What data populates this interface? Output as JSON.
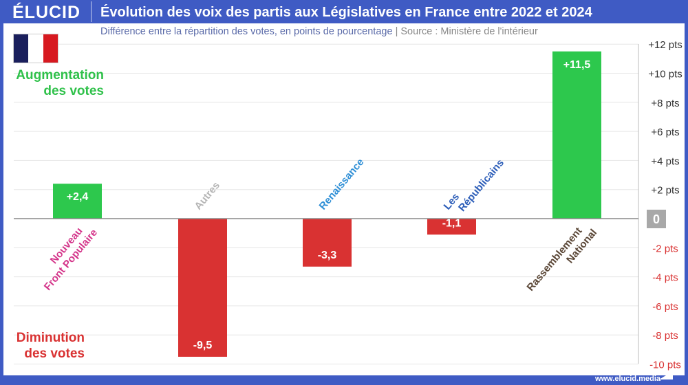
{
  "header": {
    "logo": "ÉLUCID",
    "title": "Évolution des voix des partis aux Législatives en France entre 2022 et 2024"
  },
  "subtitle": {
    "text": "Différence entre la répartition des votes, en points de pourcentage",
    "separator": "|",
    "source": "Source : Ministère de l'intérieur"
  },
  "legend": {
    "up": "Augmentation des votes",
    "down": "Diminution des votes"
  },
  "flag_colors": [
    "#1a1f5c",
    "#ffffff",
    "#d71920"
  ],
  "footer": {
    "url": "www.elucid.media"
  },
  "colors": {
    "positive": "#2dc84d",
    "negative": "#d93232",
    "zero_box": "#a8a8a8"
  },
  "chart_data": {
    "type": "bar",
    "categories": [
      "Nouveau Front Populaire",
      "Autres",
      "Renaissance",
      "Les Républicains",
      "Rassemblement National"
    ],
    "category_colors": [
      "#d4358a",
      "#b5b5b5",
      "#2f8fd6",
      "#2c5db8",
      "#5a4636"
    ],
    "values": [
      2.4,
      -9.5,
      -3.3,
      -1.1,
      11.5
    ],
    "data_labels": [
      "+2,4",
      "-9,5",
      "-3,3",
      "-1,1",
      "+11,5"
    ],
    "ylim": [
      -10,
      12
    ],
    "yticks": [
      12,
      10,
      8,
      6,
      4,
      2,
      0,
      -2,
      -4,
      -6,
      -8,
      -10
    ],
    "ytick_labels": [
      "+12 pts",
      "+10 pts",
      "+8 pts",
      "+6 pts",
      "+4 pts",
      "+2 pts",
      "0",
      "-2 pts",
      "-4 pts",
      "-6 pts",
      "-8 pts",
      "-10 pts"
    ],
    "grid": true,
    "axis_position": "right"
  }
}
